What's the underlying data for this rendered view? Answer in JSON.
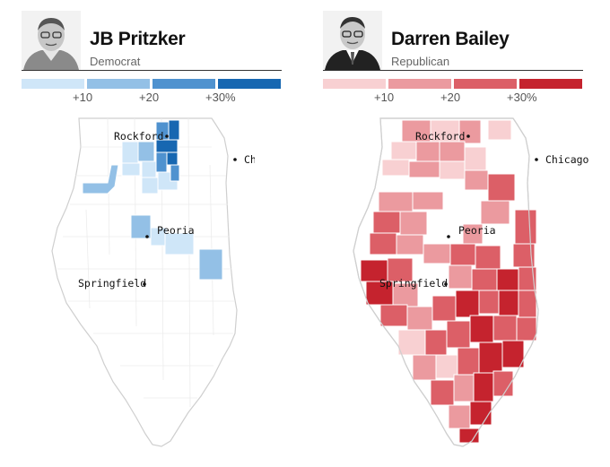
{
  "candidates": [
    {
      "name": "JB Pritzker",
      "party": "Democrat",
      "scale_colors": [
        "#cfe6f8",
        "#93c0e6",
        "#4f92cf",
        "#1767b1"
      ],
      "scale_labels": [
        "+10",
        "+20",
        "+30%"
      ]
    },
    {
      "name": "Darren Bailey",
      "party": "Republican",
      "scale_colors": [
        "#f8d0d2",
        "#eb9a9f",
        "#dc5f67",
        "#c5232e"
      ],
      "scale_labels": [
        "+10",
        "+20",
        "+30%"
      ]
    }
  ],
  "cities": [
    "Rockford",
    "Chicago",
    "Peoria",
    "Springfield"
  ],
  "colors": {
    "outline": "#cfcfcf",
    "dem_1": "#cfe6f8",
    "dem_2": "#93c0e6",
    "dem_3": "#4f92cf",
    "dem_4": "#1767b1",
    "rep_1": "#f8d0d2",
    "rep_2": "#eb9a9f",
    "rep_3": "#dc5f67",
    "rep_4": "#c5232e"
  }
}
